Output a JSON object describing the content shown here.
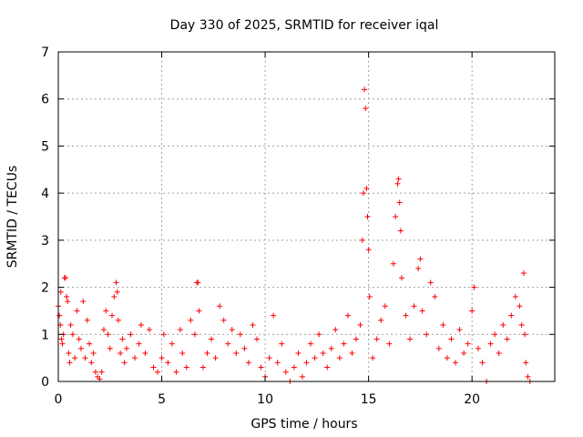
{
  "chart_data": {
    "type": "scatter",
    "title": "Day 330 of 2025, SRMTID for receiver iqal",
    "xlabel": "GPS time / hours",
    "ylabel": "SRMTID / TECUs",
    "xlim": [
      0,
      24
    ],
    "ylim": [
      0,
      7
    ],
    "x_ticks": [
      "0",
      "5",
      "10",
      "15",
      "20"
    ],
    "y_ticks": [
      "0",
      "1",
      "2",
      "3",
      "4",
      "5",
      "6",
      "7"
    ],
    "grid": true,
    "marker": "+",
    "series": [
      {
        "name": "SRMTID",
        "color": "#ff0000",
        "points": [
          [
            0.0,
            1.6
          ],
          [
            0.05,
            1.4
          ],
          [
            0.1,
            1.2
          ],
          [
            0.12,
            1.9
          ],
          [
            0.15,
            0.9
          ],
          [
            0.2,
            0.8
          ],
          [
            0.25,
            1.0
          ],
          [
            0.3,
            2.2
          ],
          [
            0.35,
            2.2
          ],
          [
            0.4,
            1.8
          ],
          [
            0.45,
            1.7
          ],
          [
            0.5,
            0.6
          ],
          [
            0.55,
            0.4
          ],
          [
            0.6,
            1.2
          ],
          [
            0.7,
            1.0
          ],
          [
            0.8,
            0.5
          ],
          [
            0.9,
            1.5
          ],
          [
            1.0,
            0.9
          ],
          [
            1.1,
            0.7
          ],
          [
            1.2,
            1.7
          ],
          [
            1.3,
            0.5
          ],
          [
            1.4,
            1.3
          ],
          [
            1.5,
            0.8
          ],
          [
            1.6,
            0.4
          ],
          [
            1.7,
            0.6
          ],
          [
            1.8,
            0.2
          ],
          [
            1.9,
            0.1
          ],
          [
            2.0,
            0.05
          ],
          [
            2.1,
            0.2
          ],
          [
            2.2,
            1.1
          ],
          [
            2.3,
            1.5
          ],
          [
            2.4,
            1.0
          ],
          [
            2.5,
            0.7
          ],
          [
            2.6,
            1.4
          ],
          [
            2.7,
            1.8
          ],
          [
            2.8,
            2.1
          ],
          [
            2.85,
            1.9
          ],
          [
            2.9,
            1.3
          ],
          [
            3.0,
            0.6
          ],
          [
            3.1,
            0.9
          ],
          [
            3.2,
            0.4
          ],
          [
            3.3,
            0.7
          ],
          [
            3.5,
            1.0
          ],
          [
            3.7,
            0.5
          ],
          [
            3.9,
            0.8
          ],
          [
            4.0,
            1.2
          ],
          [
            4.2,
            0.6
          ],
          [
            4.4,
            1.1
          ],
          [
            4.6,
            0.3
          ],
          [
            4.8,
            0.2
          ],
          [
            5.0,
            0.5
          ],
          [
            5.1,
            1.0
          ],
          [
            5.3,
            0.4
          ],
          [
            5.5,
            0.8
          ],
          [
            5.7,
            0.2
          ],
          [
            5.9,
            1.1
          ],
          [
            6.0,
            0.6
          ],
          [
            6.2,
            0.3
          ],
          [
            6.4,
            1.3
          ],
          [
            6.6,
            1.0
          ],
          [
            6.7,
            2.1
          ],
          [
            6.75,
            2.1
          ],
          [
            6.8,
            1.5
          ],
          [
            7.0,
            0.3
          ],
          [
            7.2,
            0.6
          ],
          [
            7.4,
            0.9
          ],
          [
            7.6,
            0.5
          ],
          [
            7.8,
            1.6
          ],
          [
            8.0,
            1.3
          ],
          [
            8.2,
            0.8
          ],
          [
            8.4,
            1.1
          ],
          [
            8.6,
            0.6
          ],
          [
            8.8,
            1.0
          ],
          [
            9.0,
            0.7
          ],
          [
            9.2,
            0.4
          ],
          [
            9.4,
            1.2
          ],
          [
            9.6,
            0.9
          ],
          [
            9.8,
            0.3
          ],
          [
            10.0,
            0.1
          ],
          [
            10.2,
            0.5
          ],
          [
            10.4,
            1.4
          ],
          [
            10.6,
            0.4
          ],
          [
            10.8,
            0.8
          ],
          [
            11.0,
            0.2
          ],
          [
            11.2,
            0.0
          ],
          [
            11.4,
            0.3
          ],
          [
            11.6,
            0.6
          ],
          [
            11.8,
            0.1
          ],
          [
            12.0,
            0.4
          ],
          [
            12.2,
            0.8
          ],
          [
            12.4,
            0.5
          ],
          [
            12.6,
            1.0
          ],
          [
            12.8,
            0.6
          ],
          [
            13.0,
            0.3
          ],
          [
            13.2,
            0.7
          ],
          [
            13.4,
            1.1
          ],
          [
            13.6,
            0.5
          ],
          [
            13.8,
            0.8
          ],
          [
            14.0,
            1.4
          ],
          [
            14.2,
            0.6
          ],
          [
            14.4,
            0.9
          ],
          [
            14.6,
            1.2
          ],
          [
            14.7,
            3.0
          ],
          [
            14.75,
            4.0
          ],
          [
            14.8,
            6.2
          ],
          [
            14.85,
            5.8
          ],
          [
            14.9,
            4.1
          ],
          [
            14.95,
            3.5
          ],
          [
            15.0,
            2.8
          ],
          [
            15.05,
            1.8
          ],
          [
            15.2,
            0.5
          ],
          [
            15.4,
            0.9
          ],
          [
            15.6,
            1.3
          ],
          [
            15.8,
            1.6
          ],
          [
            16.0,
            0.8
          ],
          [
            16.2,
            2.5
          ],
          [
            16.3,
            3.5
          ],
          [
            16.4,
            4.2
          ],
          [
            16.45,
            4.3
          ],
          [
            16.5,
            3.8
          ],
          [
            16.55,
            3.2
          ],
          [
            16.6,
            2.2
          ],
          [
            16.8,
            1.4
          ],
          [
            17.0,
            0.9
          ],
          [
            17.2,
            1.6
          ],
          [
            17.4,
            2.4
          ],
          [
            17.5,
            2.6
          ],
          [
            17.6,
            1.5
          ],
          [
            17.8,
            1.0
          ],
          [
            18.0,
            2.1
          ],
          [
            18.2,
            1.8
          ],
          [
            18.4,
            0.7
          ],
          [
            18.6,
            1.2
          ],
          [
            18.8,
            0.5
          ],
          [
            19.0,
            0.9
          ],
          [
            19.2,
            0.4
          ],
          [
            19.4,
            1.1
          ],
          [
            19.6,
            0.6
          ],
          [
            19.8,
            0.8
          ],
          [
            20.0,
            1.5
          ],
          [
            20.1,
            2.0
          ],
          [
            20.3,
            0.7
          ],
          [
            20.5,
            0.4
          ],
          [
            20.7,
            0.0
          ],
          [
            20.9,
            0.8
          ],
          [
            21.1,
            1.0
          ],
          [
            21.3,
            0.6
          ],
          [
            21.5,
            1.2
          ],
          [
            21.7,
            0.9
          ],
          [
            21.9,
            1.4
          ],
          [
            22.1,
            1.8
          ],
          [
            22.3,
            1.6
          ],
          [
            22.4,
            1.2
          ],
          [
            22.5,
            2.3
          ],
          [
            22.55,
            1.0
          ],
          [
            22.6,
            0.4
          ],
          [
            22.7,
            0.1
          ],
          [
            22.8,
            0.0
          ]
        ]
      }
    ]
  }
}
